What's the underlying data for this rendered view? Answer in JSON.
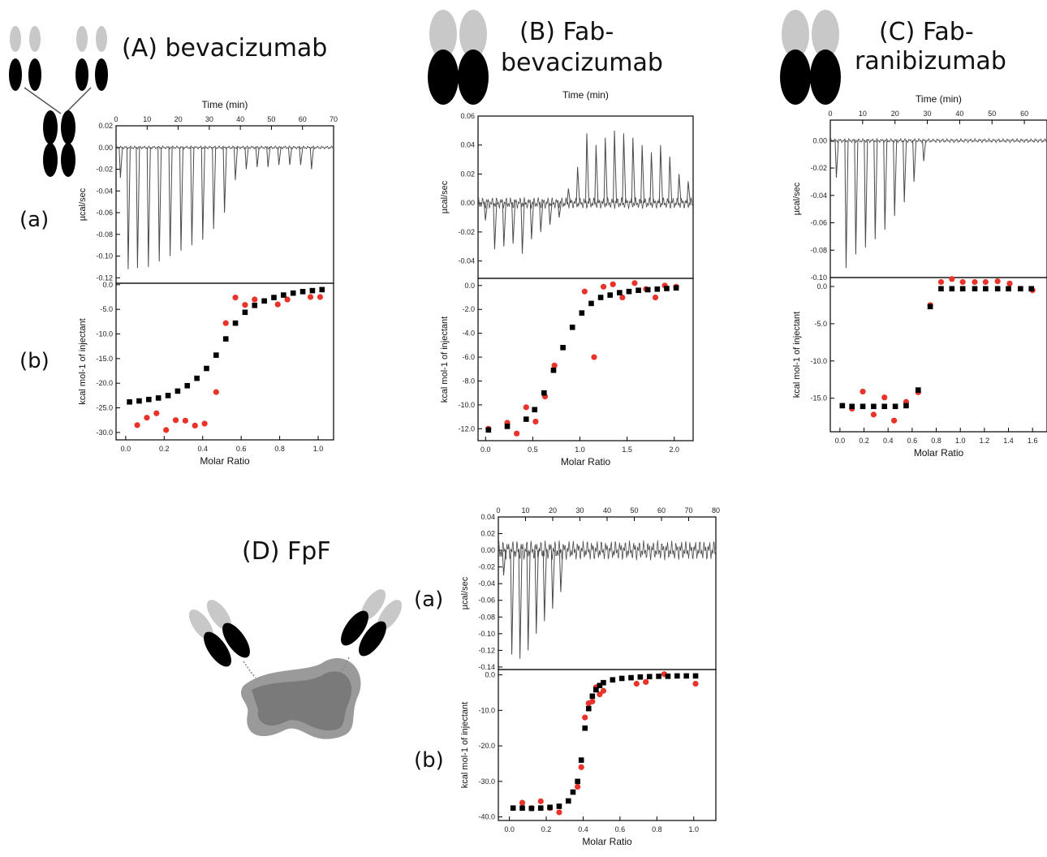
{
  "figure": {
    "titles": {
      "A": "(A) bevacizumab",
      "B1": "(B) Fab-",
      "B2": "bevacizumab",
      "C1": "(C) Fab-",
      "C2": "ranibizumab",
      "D": "(D) FpF"
    },
    "sublabels": {
      "a": "(a)",
      "b": "(b)"
    },
    "colors": {
      "raw": "#4a4a4a",
      "fit_marker": "#000000",
      "data_point": "#e8332a",
      "light_chain": "#c8c8c8",
      "heavy_chain": "#000000"
    }
  },
  "chart_data": [
    {
      "id": "A",
      "title": "(A) bevacizumab",
      "top": {
        "type": "line",
        "xlabel": "Time (min)",
        "ylabel": "µcal/sec",
        "xlim": [
          0,
          70
        ],
        "ylim": [
          -0.125,
          0.02
        ],
        "xticks": [
          0,
          10,
          20,
          30,
          40,
          50,
          60,
          70
        ],
        "xtick_labels": [
          "0",
          "10",
          "20",
          "30",
          "40",
          "50",
          "60",
          "70"
        ],
        "yticks": [
          0.02,
          0,
          -0.02,
          -0.04,
          -0.06,
          -0.08,
          -0.1,
          -0.12
        ],
        "ytick_labels": [
          "0.02",
          "0.00",
          "-0.02",
          "-0.04",
          "-0.06",
          "-0.08",
          "-0.10",
          "-0.12"
        ],
        "baseline": 0,
        "injection_times": [
          1,
          3.5,
          6.5,
          10,
          13.5,
          17,
          20.5,
          24,
          27.5,
          31,
          34.5,
          38,
          41.5,
          45,
          48.5,
          52,
          55.5,
          59,
          62.5
        ],
        "peaks": [
          -0.028,
          -0.112,
          -0.111,
          -0.11,
          -0.105,
          -0.1,
          -0.095,
          -0.09,
          -0.085,
          -0.075,
          -0.06,
          -0.03,
          -0.02,
          -0.018,
          -0.018,
          -0.016,
          -0.016,
          -0.016,
          -0.02
        ]
      },
      "bottom": {
        "type": "scatter",
        "xlabel": "Molar Ratio",
        "ylabel": "kcal mol-1 of injectant",
        "xlim": [
          -0.05,
          1.08
        ],
        "ylim": [
          -31.5,
          0.3
        ],
        "xticks": [
          0,
          0.2,
          0.4,
          0.6,
          0.8,
          1.0
        ],
        "xtick_labels": [
          "0.0",
          "0.2",
          "0.4",
          "0.6",
          "0.8",
          "1.0"
        ],
        "yticks": [
          0,
          -5,
          -10,
          -15,
          -20,
          -25,
          -30
        ],
        "ytick_labels": [
          "0.0",
          "-5.0",
          "-10.0",
          "-15.0",
          "-20.0",
          "-25.0",
          "-30.0"
        ],
        "fit": {
          "x": [
            0.02,
            0.07,
            0.12,
            0.17,
            0.22,
            0.27,
            0.32,
            0.37,
            0.42,
            0.47,
            0.52,
            0.57,
            0.62,
            0.67,
            0.72,
            0.77,
            0.82,
            0.87,
            0.92,
            0.97,
            1.02
          ],
          "y": [
            -23.8,
            -23.6,
            -23.3,
            -23.0,
            -22.5,
            -21.6,
            -20.5,
            -19.0,
            -17.0,
            -14.3,
            -11.0,
            -7.8,
            -5.6,
            -4.2,
            -3.3,
            -2.6,
            -2.1,
            -1.7,
            -1.4,
            -1.2,
            -1.0
          ]
        },
        "points": {
          "x": [
            0.06,
            0.11,
            0.16,
            0.21,
            0.26,
            0.31,
            0.36,
            0.41,
            0.47,
            0.52,
            0.57,
            0.62,
            0.67,
            0.79,
            0.84,
            0.96,
            1.01
          ],
          "y": [
            -28.5,
            -27.0,
            -26.1,
            -29.5,
            -27.5,
            -27.6,
            -28.6,
            -28.2,
            -21.8,
            -7.8,
            -2.6,
            -4.1,
            -3.0,
            -4.0,
            -3.0,
            -2.5,
            -2.5
          ]
        }
      }
    },
    {
      "id": "B",
      "title": "(B) Fab-bevacizumab",
      "top": {
        "type": "line",
        "xlabel": "Time (min)",
        "ylabel": "µcal/sec",
        "xlim": [
          0,
          70
        ],
        "ylim": [
          -0.052,
          0.06
        ],
        "xticks": [],
        "xtick_labels": [],
        "yticks": [
          0.06,
          0.04,
          0.02,
          0,
          -0.02,
          -0.04
        ],
        "ytick_labels": [
          "0.06",
          "0.04",
          "0.02",
          "0.00",
          "-0.02",
          "-0.04"
        ],
        "baseline": 0,
        "injection_times": [
          2,
          5,
          8,
          11,
          14,
          17,
          20,
          23,
          26,
          29,
          32,
          35,
          38,
          41,
          44,
          47,
          50,
          53,
          56,
          59,
          62,
          65,
          68
        ],
        "peaks": [
          -0.012,
          -0.032,
          -0.03,
          -0.028,
          -0.035,
          -0.025,
          -0.02,
          -0.015,
          -0.01,
          0.01,
          0.025,
          0.048,
          0.04,
          0.045,
          0.05,
          0.048,
          0.045,
          0.04,
          0.035,
          0.04,
          0.032,
          0.02,
          0.015
        ]
      },
      "bottom": {
        "type": "scatter",
        "xlabel": "Molar Ratio",
        "ylabel": "kcal mol-1 of injectant",
        "xlim": [
          -0.08,
          2.2
        ],
        "ylim": [
          -13.0,
          0.6
        ],
        "xticks": [
          0,
          0.5,
          1.0,
          1.5,
          2.0
        ],
        "xtick_labels": [
          "0.0",
          "0.5",
          "1.0",
          "1.5",
          "2.0"
        ],
        "yticks": [
          0,
          -2,
          -4,
          -6,
          -8,
          -10,
          -12
        ],
        "ytick_labels": [
          "0.0",
          "-2.0",
          "-4.0",
          "-6.0",
          "-8.0",
          "-10.0",
          "-12.0"
        ],
        "fit": {
          "x": [
            0.03,
            0.23,
            0.43,
            0.52,
            0.62,
            0.72,
            0.82,
            0.92,
            1.02,
            1.12,
            1.22,
            1.32,
            1.42,
            1.52,
            1.62,
            1.72,
            1.82,
            1.92,
            2.02
          ],
          "y": [
            -12.1,
            -11.8,
            -11.2,
            -10.4,
            -9.0,
            -7.1,
            -5.2,
            -3.5,
            -2.3,
            -1.5,
            -1.0,
            -0.8,
            -0.6,
            -0.5,
            -0.4,
            -0.35,
            -0.3,
            -0.25,
            -0.2
          ]
        },
        "points": {
          "x": [
            0.03,
            0.23,
            0.33,
            0.43,
            0.53,
            0.63,
            0.73,
            1.05,
            1.15,
            1.25,
            1.35,
            1.45,
            1.58,
            1.7,
            1.8,
            1.9,
            2.02
          ],
          "y": [
            -12.0,
            -11.5,
            -12.4,
            -10.2,
            -11.4,
            -9.3,
            -6.7,
            -0.5,
            -6.0,
            -0.1,
            0.1,
            -1.0,
            0.2,
            -0.3,
            -1.0,
            0.0,
            -0.1
          ]
        }
      }
    },
    {
      "id": "C",
      "title": "(C) Fab-ranibizumab",
      "top": {
        "type": "line",
        "xlabel": "Time (min)",
        "ylabel": "µcal/sec",
        "xlim": [
          0,
          67
        ],
        "ylim": [
          -0.1,
          0.015
        ],
        "xticks": [
          0,
          10,
          20,
          30,
          40,
          50,
          60
        ],
        "xtick_labels": [
          "0",
          "10",
          "20",
          "30",
          "40",
          "50",
          "60"
        ],
        "yticks": [
          0,
          -0.02,
          -0.04,
          -0.06,
          -0.08,
          -0.1
        ],
        "ytick_labels": [
          "0.00",
          "-0.02",
          "-0.04",
          "-0.06",
          "-0.08",
          "-0.10"
        ],
        "baseline": 0,
        "injection_times": [
          1.5,
          4.5,
          7.5,
          10.5,
          13.5,
          16.5,
          19.5,
          22.5,
          25.5,
          28.5
        ],
        "peaks": [
          -0.027,
          -0.093,
          -0.083,
          -0.078,
          -0.072,
          -0.065,
          -0.055,
          -0.045,
          -0.03,
          -0.015
        ]
      },
      "bottom": {
        "type": "scatter",
        "xlabel": "Molar Ratio",
        "ylabel": "kcal mol-1 of injectant",
        "xlim": [
          -0.08,
          1.72
        ],
        "ylim": [
          -19.5,
          1.2
        ],
        "xticks": [
          0,
          0.2,
          0.4,
          0.6,
          0.8,
          1.0,
          1.2,
          1.4,
          1.6
        ],
        "xtick_labels": [
          "0.0",
          "0.2",
          "0.4",
          "0.6",
          "0.8",
          "1.0",
          "1.2",
          "1.4",
          "1.6"
        ],
        "yticks": [
          0,
          -5,
          -10,
          -15
        ],
        "ytick_labels": [
          "0.0",
          "-5.0",
          "-10.0",
          "-15.0"
        ],
        "fit": {
          "x": [
            0.02,
            0.1,
            0.19,
            0.28,
            0.37,
            0.46,
            0.55,
            0.65,
            0.75,
            0.84,
            0.93,
            1.02,
            1.12,
            1.21,
            1.31,
            1.4,
            1.5,
            1.59
          ],
          "y": [
            -16.0,
            -16.1,
            -16.1,
            -16.1,
            -16.1,
            -16.1,
            -16.0,
            -13.9,
            -2.7,
            -0.3,
            -0.3,
            -0.3,
            -0.3,
            -0.3,
            -0.3,
            -0.3,
            -0.3,
            -0.3
          ]
        },
        "points": {
          "x": [
            0.1,
            0.19,
            0.28,
            0.37,
            0.45,
            0.55,
            0.65,
            0.75,
            0.84,
            0.93,
            1.02,
            1.12,
            1.21,
            1.31,
            1.41,
            1.6
          ],
          "y": [
            -16.4,
            -14.1,
            -17.2,
            -14.9,
            -18.0,
            -15.5,
            -14.2,
            -2.5,
            0.6,
            1.0,
            0.6,
            0.6,
            0.6,
            0.7,
            0.4,
            -0.5
          ]
        }
      }
    },
    {
      "id": "D",
      "title": "(D) FpF",
      "top": {
        "type": "line",
        "xlabel": "",
        "ylabel": "µcal/sec",
        "xlim": [
          0,
          80
        ],
        "ylim": [
          -0.143,
          0.04
        ],
        "xticks": [
          0,
          10,
          20,
          30,
          40,
          50,
          60,
          70,
          80
        ],
        "xtick_labels": [
          "0",
          "10",
          "20",
          "30",
          "40",
          "50",
          "60",
          "70",
          "80"
        ],
        "yticks": [
          0.04,
          0.02,
          0,
          -0.02,
          -0.04,
          -0.06,
          -0.08,
          -0.1,
          -0.12,
          -0.14
        ],
        "ytick_labels": [
          "0.04",
          "0.02",
          "0.00",
          "-0.02",
          "-0.04",
          "-0.06",
          "-0.08",
          "-0.10",
          "-0.12",
          "-0.14"
        ],
        "baseline": 0,
        "injection_times": [
          1.5,
          4.5,
          7.5,
          10.5,
          13.5,
          16.5,
          19.5,
          22.5
        ],
        "peaks": [
          -0.03,
          -0.125,
          -0.13,
          -0.12,
          -0.1,
          -0.085,
          -0.07,
          -0.05
        ]
      },
      "bottom": {
        "type": "scatter",
        "xlabel": "Molar Ratio",
        "ylabel": "kcal mol-1 of injectant",
        "xlim": [
          -0.06,
          1.12
        ],
        "ylim": [
          -41.0,
          1.5
        ],
        "xticks": [
          0,
          0.2,
          0.4,
          0.6,
          0.8,
          1.0
        ],
        "xtick_labels": [
          "0.0",
          "0.2",
          "0.4",
          "0.6",
          "0.8",
          "1.0"
        ],
        "yticks": [
          0,
          -10,
          -20,
          -30,
          -40
        ],
        "ytick_labels": [
          "0.0",
          "-10.0",
          "-20.0",
          "-30.0",
          "-40.0"
        ],
        "fit": {
          "x": [
            0.02,
            0.07,
            0.12,
            0.17,
            0.22,
            0.27,
            0.32,
            0.345,
            0.37,
            0.39,
            0.41,
            0.43,
            0.45,
            0.47,
            0.49,
            0.51,
            0.56,
            0.61,
            0.66,
            0.71,
            0.76,
            0.81,
            0.86,
            0.91,
            0.96,
            1.01
          ],
          "y": [
            -37.5,
            -37.5,
            -37.6,
            -37.5,
            -37.3,
            -37.0,
            -35.5,
            -33.0,
            -30.0,
            -24.0,
            -15.0,
            -9.5,
            -6.0,
            -4.2,
            -3.0,
            -2.2,
            -1.4,
            -1.0,
            -0.8,
            -0.6,
            -0.5,
            -0.4,
            -0.4,
            -0.3,
            -0.3,
            -0.3
          ]
        },
        "points": {
          "x": [
            0.07,
            0.12,
            0.17,
            0.22,
            0.27,
            0.37,
            0.39,
            0.41,
            0.43,
            0.45,
            0.47,
            0.49,
            0.51,
            0.69,
            0.74,
            0.84,
            1.01
          ],
          "y": [
            -36.0,
            -37.5,
            -35.6,
            -37.5,
            -38.7,
            -31.5,
            -26.0,
            -12.0,
            -8.0,
            -7.5,
            -3.5,
            -5.5,
            -4.5,
            -2.5,
            -2.0,
            0.2,
            -2.5
          ]
        }
      }
    }
  ]
}
